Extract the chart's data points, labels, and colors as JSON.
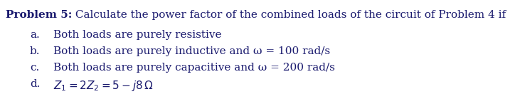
{
  "title_bold": "Problem 5:",
  "title_normal": " Calculate the power factor of the combined loads of the circuit of Problem 4 if",
  "items_labels": [
    "a.",
    "b.",
    "c.",
    "d."
  ],
  "items_texts": [
    "Both loads are purely resistive",
    "Both loads are purely inductive and ω = 100 rad/s",
    "Both loads are purely capacitive and ω = 200 rad/s",
    "$Z_1 = 2Z_2 = 5 - j8\\,\\Omega$"
  ],
  "background_color": "#ffffff",
  "text_color": "#1a1a6e",
  "font_family": "serif",
  "title_fontsize": 11.0,
  "body_fontsize": 11.0,
  "fig_width": 7.31,
  "fig_height": 1.53,
  "dpi": 100
}
